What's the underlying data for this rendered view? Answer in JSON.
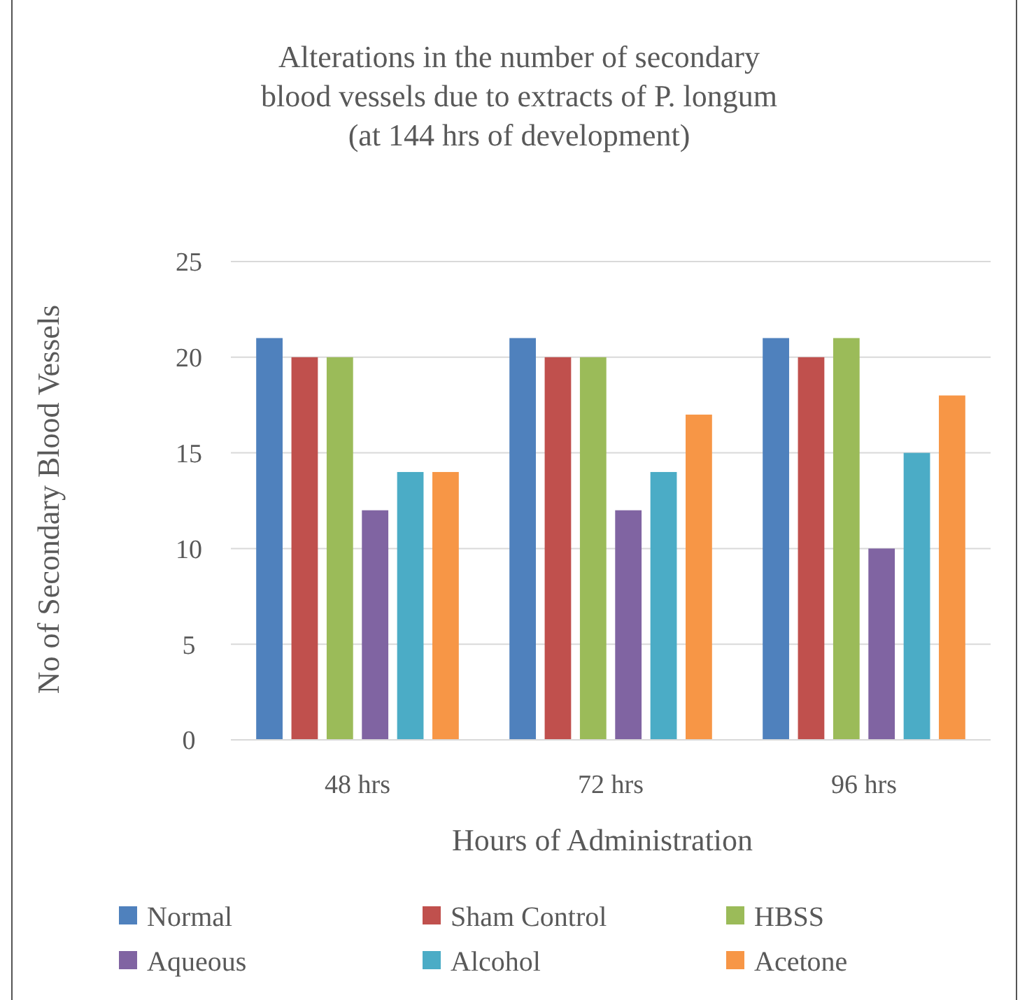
{
  "chart_data": {
    "type": "bar",
    "title": "Alterations in the number of secondary\nblood vessels  due to extracts of P. longum\n(at 144 hrs of development)",
    "xlabel": "Hours of Administration",
    "ylabel": "No of Secondary Blood Vessels",
    "categories": [
      "48 hrs",
      "72 hrs",
      "96 hrs"
    ],
    "series": [
      {
        "name": "Normal",
        "color": "#4f81bd",
        "values": [
          21,
          21,
          21
        ]
      },
      {
        "name": "Sham Control",
        "color": "#c0504d",
        "values": [
          20,
          20,
          20
        ]
      },
      {
        "name": "HBSS",
        "color": "#9bbb59",
        "values": [
          20,
          20,
          21
        ]
      },
      {
        "name": "Aqueous",
        "color": "#8064a2",
        "values": [
          12,
          12,
          10
        ]
      },
      {
        "name": "Alcohol",
        "color": "#4bacc6",
        "values": [
          14,
          14,
          15
        ]
      },
      {
        "name": "Acetone",
        "color": "#f79646",
        "values": [
          14,
          17,
          18
        ]
      }
    ],
    "ylim": [
      0,
      25
    ],
    "yticks": [
      0,
      5,
      10,
      15,
      20,
      25
    ],
    "grid": "y",
    "legend": "bottom"
  }
}
